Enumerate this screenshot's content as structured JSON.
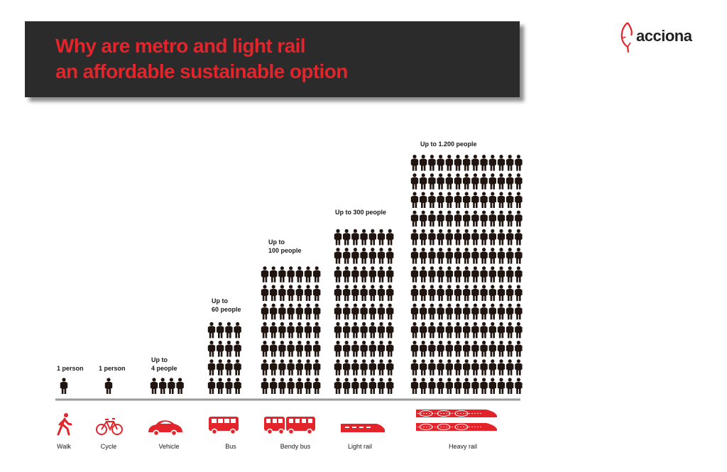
{
  "title": {
    "line1": "Why are metro and light rail",
    "line2": "an affordable sustainable option"
  },
  "logo": {
    "text": "acciona"
  },
  "colors": {
    "accent": "#e3242b",
    "title_bg": "#2b2b2b",
    "people": "#1f1410",
    "baseline": "#9a9a9a"
  },
  "chart_data": {
    "type": "pictograph",
    "title": "Why are metro and light rail an affordable sustainable option",
    "categories": [
      "Walk",
      "Cycle",
      "Vehicle",
      "Bus",
      "Bendy bus",
      "Light rail",
      "Heavy rail"
    ],
    "capacities": [
      1,
      1,
      4,
      60,
      100,
      300,
      1200
    ],
    "capacity_labels": [
      [
        "1 person"
      ],
      [
        "1 person"
      ],
      [
        "Up to",
        "4 people"
      ],
      [
        "Up to",
        "60 people"
      ],
      [
        "Up to",
        "100 people"
      ],
      [
        "Up to 300 people"
      ],
      [
        "Up to 1.200 people"
      ]
    ],
    "icon_names": [
      "walk-icon",
      "bicycle-icon",
      "car-icon",
      "bus-icon",
      "bendy-bus-icon",
      "light-rail-icon",
      "heavy-rail-icon"
    ]
  }
}
